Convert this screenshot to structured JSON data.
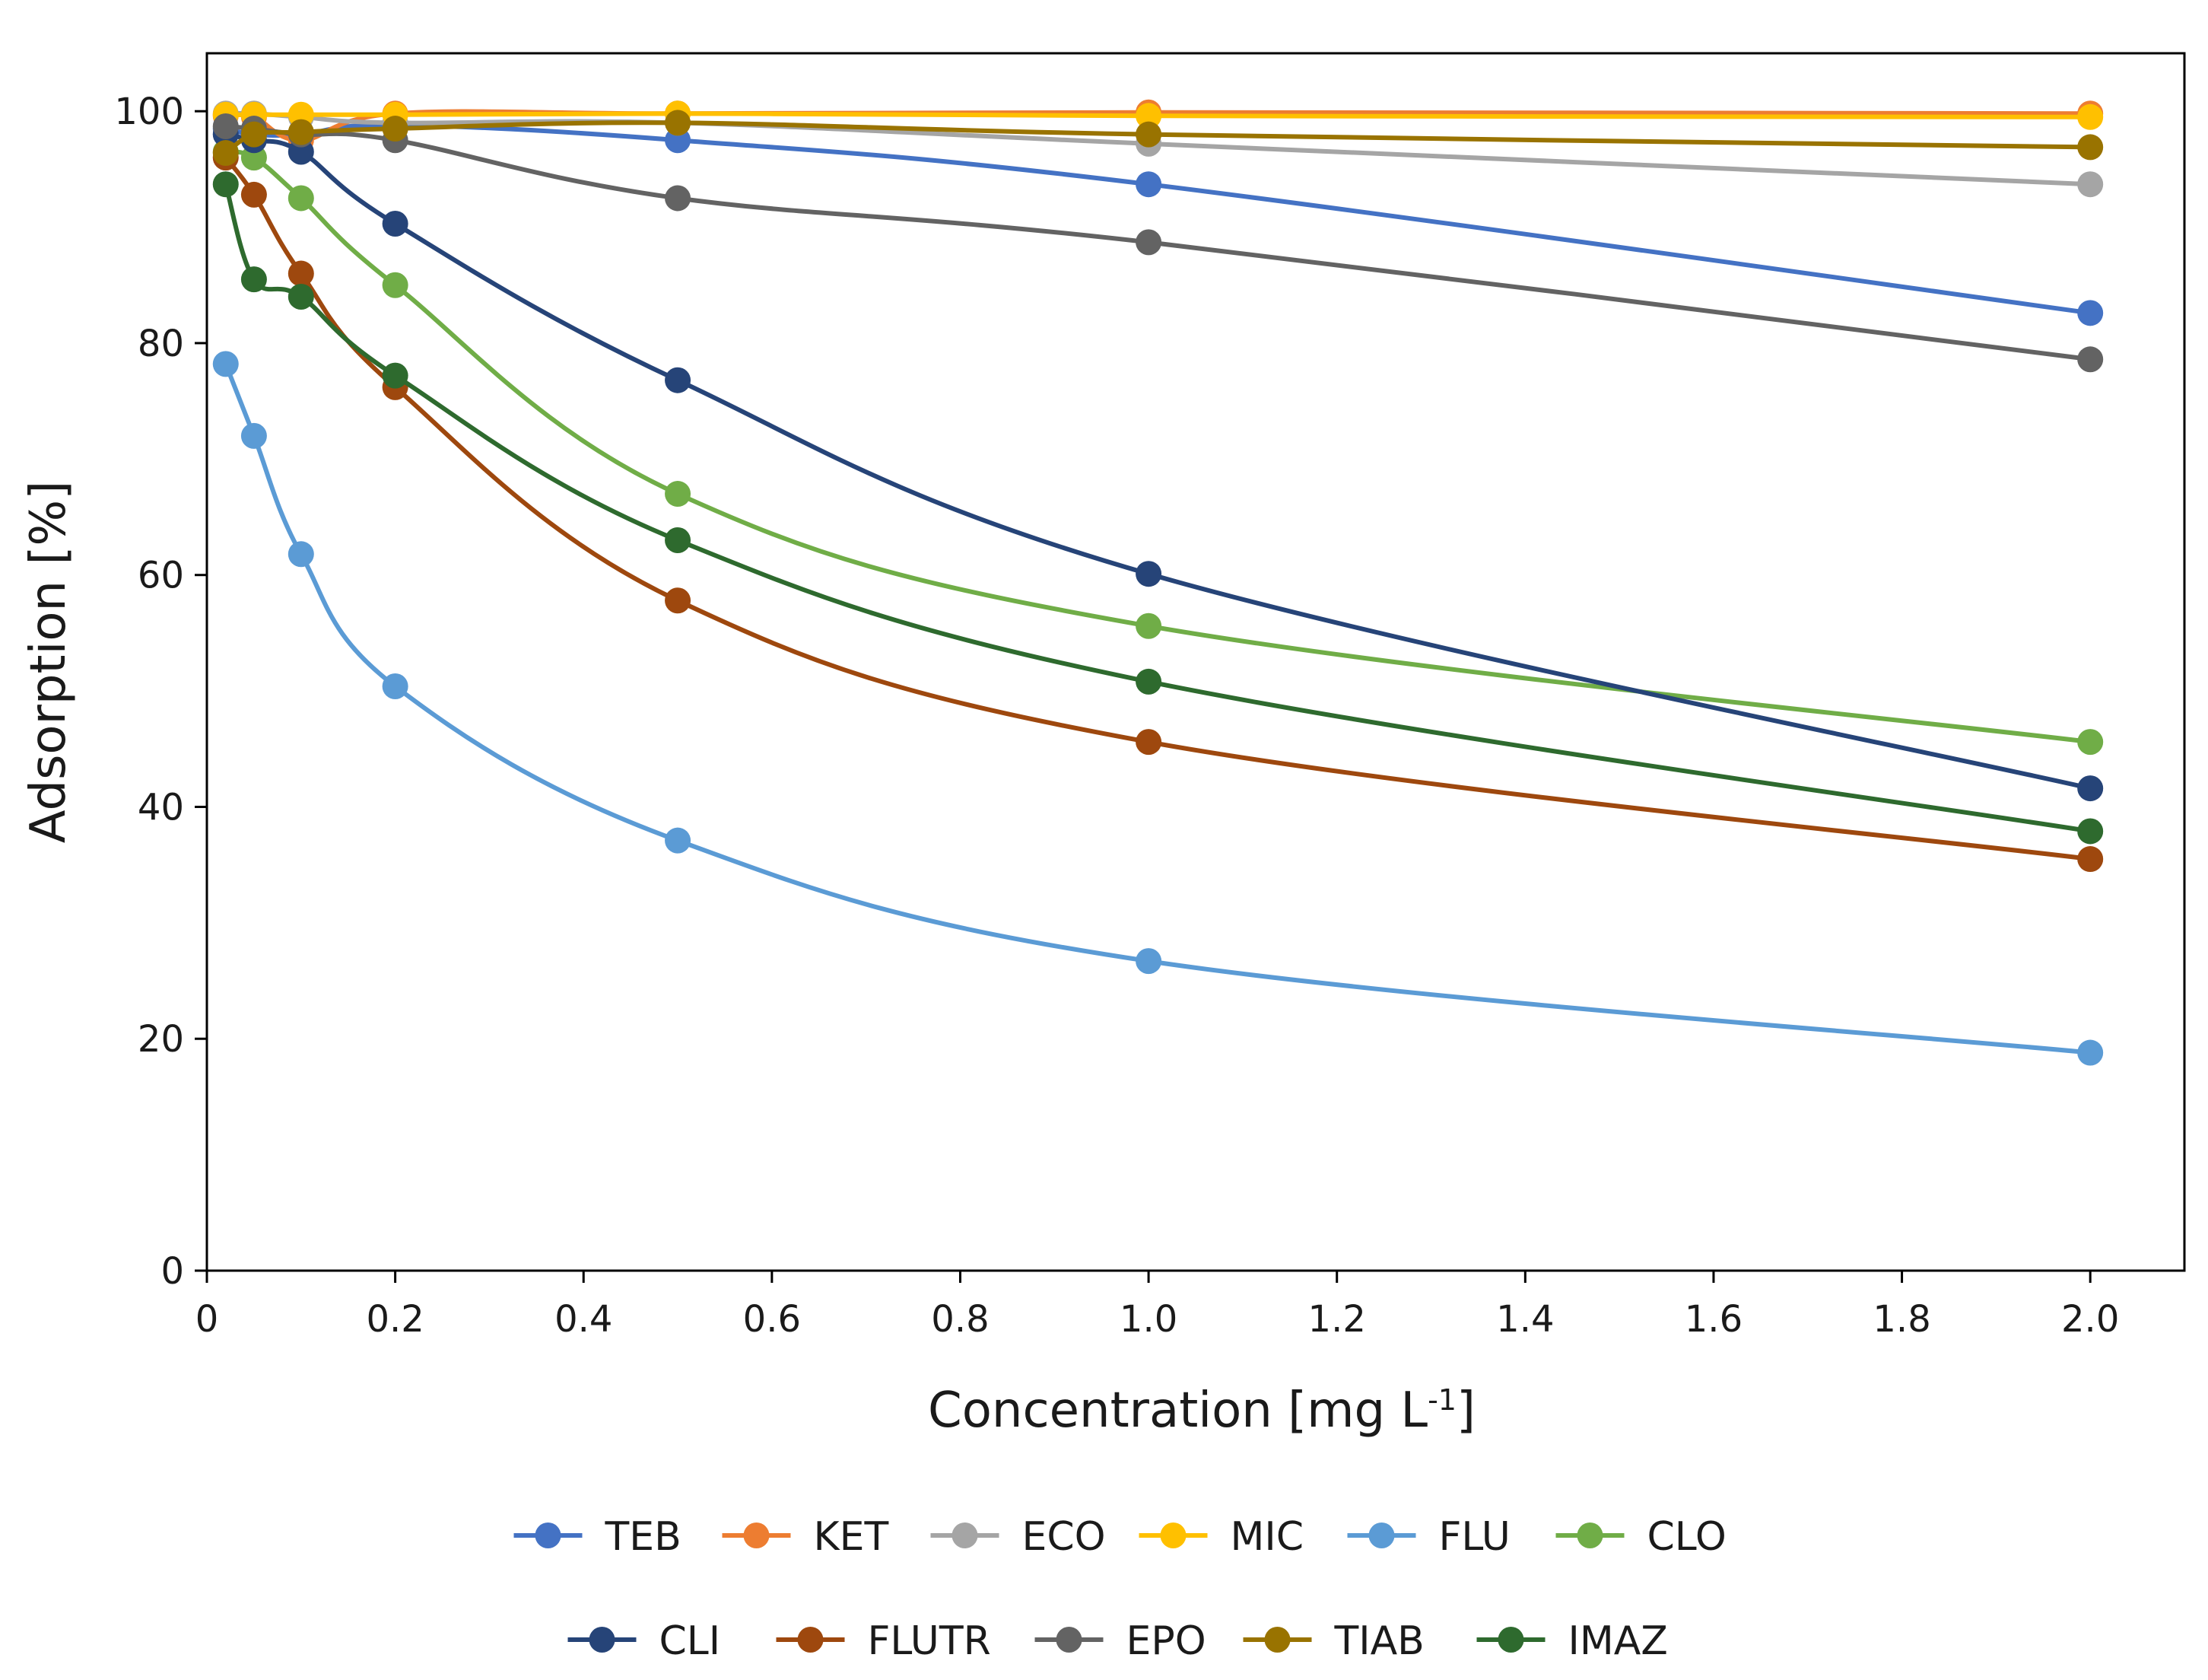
{
  "chart_data": {
    "type": "line",
    "title": "",
    "xlabel": "Concentration [mg L",
    "xlabel_superscript": "-1",
    "xlabel_suffix": "]",
    "ylabel": "Adsorption [%]",
    "xlim": [
      0,
      2.1
    ],
    "ylim": [
      0,
      105
    ],
    "x_ticks": [
      0,
      0.2,
      0.4,
      0.6,
      0.8,
      1.0,
      1.2,
      1.4,
      1.6,
      1.8,
      2.0
    ],
    "x_tick_labels": [
      "0",
      "0.2",
      "0.4",
      "0.6",
      "0.8",
      "1.0",
      "1.2",
      "1.4",
      "1.6",
      "1.8",
      "2.0"
    ],
    "y_ticks": [
      0,
      20,
      40,
      60,
      80,
      100
    ],
    "y_tick_labels": [
      "0",
      "20",
      "40",
      "60",
      "80",
      "100"
    ],
    "grid": false,
    "legend_position": "bottom",
    "x": [
      0.02,
      0.05,
      0.1,
      0.2,
      0.5,
      1.0,
      2.0
    ],
    "series": [
      {
        "name": "TEB",
        "color": "#4472C4",
        "values": [
          98.5,
          98.0,
          98.0,
          98.8,
          97.5,
          93.7,
          82.6
        ]
      },
      {
        "name": "KET",
        "color": "#ED7D31",
        "values": [
          99.6,
          99.5,
          97.5,
          99.8,
          99.8,
          99.9,
          99.8
        ]
      },
      {
        "name": "ECO",
        "color": "#A5A5A5",
        "values": [
          99.8,
          99.8,
          99.5,
          99.0,
          99.0,
          97.2,
          93.7
        ]
      },
      {
        "name": "MIC",
        "color": "#FFC000",
        "values": [
          99.7,
          99.7,
          99.7,
          99.7,
          99.8,
          99.6,
          99.5
        ]
      },
      {
        "name": "FLU",
        "color": "#5B9BD5",
        "values": [
          78.2,
          72.0,
          61.8,
          50.4,
          37.1,
          26.7,
          18.8
        ]
      },
      {
        "name": "CLO",
        "color": "#70AD47",
        "values": [
          96.5,
          96.0,
          92.5,
          85.0,
          67.0,
          55.6,
          45.6
        ]
      },
      {
        "name": "CLI",
        "color": "#264478",
        "values": [
          98.0,
          97.5,
          96.5,
          90.3,
          76.8,
          60.1,
          41.6
        ]
      },
      {
        "name": "FLUTR",
        "color": "#9E480E",
        "values": [
          96.0,
          92.8,
          86.0,
          76.2,
          57.8,
          45.6,
          35.5
        ]
      },
      {
        "name": "EPO",
        "color": "#636363",
        "values": [
          98.7,
          98.5,
          98.0,
          97.5,
          92.5,
          88.7,
          78.6
        ]
      },
      {
        "name": "TIAB",
        "color": "#997300",
        "values": [
          96.4,
          98.0,
          98.2,
          98.5,
          99.0,
          98.0,
          96.9
        ]
      },
      {
        "name": "IMAZ",
        "color": "#2E6A2E",
        "values": [
          93.7,
          85.5,
          84.0,
          77.2,
          63.0,
          50.8,
          37.9
        ]
      }
    ]
  }
}
